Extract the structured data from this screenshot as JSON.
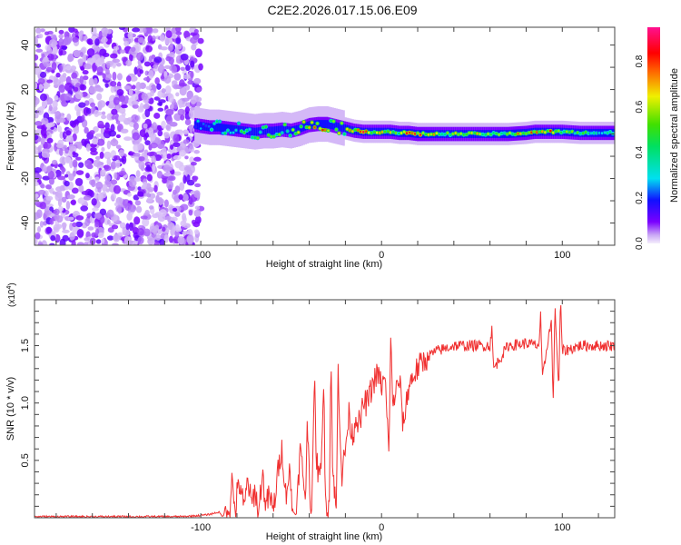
{
  "title": "C2E2.2026.017.15.06.E09",
  "chart_data": [
    {
      "type": "heatmap",
      "name": "spectrogram",
      "xlabel": "Height of straight line (km)",
      "ylabel": "Frequency (Hz)",
      "xlim": [
        -192,
        129
      ],
      "ylim": [
        -50,
        48
      ],
      "xticks": [
        -100,
        0,
        100
      ],
      "yticks": [
        -40,
        -20,
        0,
        20,
        40
      ],
      "noise_region_x": [
        -192,
        -103
      ],
      "ridge": {
        "x": [
          -103,
          -95,
          -90,
          -85,
          -80,
          -75,
          -70,
          -65,
          -60,
          -55,
          -50,
          -45,
          -40,
          -35,
          -30,
          -25,
          -20,
          -15,
          -10,
          -5,
          0,
          5,
          10,
          15,
          20,
          30,
          40,
          50,
          60,
          70,
          80,
          85,
          90,
          95,
          100,
          110,
          120,
          129
        ],
        "freq": [
          4,
          3,
          3,
          2.5,
          2,
          1.5,
          1,
          1.5,
          1.5,
          2,
          1.5,
          2.5,
          4,
          4.5,
          4.5,
          3.5,
          2.5,
          1.5,
          1,
          1,
          1,
          1,
          0.5,
          0.5,
          0,
          0,
          0,
          0,
          0,
          0,
          0.5,
          1,
          1,
          1,
          1,
          0.5,
          0.5,
          0.5
        ],
        "amplitude": [
          0.3,
          0.4,
          0.45,
          0.5,
          0.45,
          0.5,
          0.55,
          0.5,
          0.6,
          0.55,
          0.65,
          0.7,
          0.75,
          0.85,
          0.8,
          0.7,
          0.75,
          0.8,
          0.9,
          0.7,
          0.8,
          0.85,
          0.7,
          0.85,
          0.9,
          0.7,
          0.65,
          0.7,
          0.65,
          0.6,
          0.85,
          0.8,
          0.75,
          0.85,
          0.6,
          0.55,
          0.5,
          0.5
        ]
      },
      "colorbar": {
        "label": "Normalized spectral amplitude",
        "range": [
          0,
          0.95
        ],
        "ticks": [
          "0.0",
          "0.2",
          "0.4",
          "0.6",
          "0.8"
        ],
        "tick_values": [
          0,
          0.2,
          0.4,
          0.6,
          0.8
        ]
      }
    },
    {
      "type": "line",
      "name": "snr",
      "xlabel": "Height of straight line (km)",
      "ylabel": "SNR (10 * v/v)",
      "scale_label": "(x10",
      "scale_exp": "4",
      "scale_close": ")",
      "xlim": [
        -192,
        129
      ],
      "ylim": [
        0,
        1.9
      ],
      "xticks": [
        -100,
        0,
        100
      ],
      "yticks": [
        "0.5",
        "1.0",
        "1.5"
      ],
      "ytick_values": [
        0.5,
        1.0,
        1.5
      ],
      "color": "#f03030",
      "x": [
        -192,
        -150,
        -110,
        -100,
        -95,
        -90,
        -88,
        -85,
        -84,
        -83,
        -81,
        -80,
        -78,
        -76,
        -74,
        -72,
        -70,
        -68,
        -66,
        -64,
        -62,
        -60,
        -58,
        -56,
        -55,
        -53,
        -51,
        -49,
        -47,
        -45,
        -43,
        -42,
        -41,
        -39,
        -37,
        -36,
        -34,
        -32,
        -31,
        -29,
        -28,
        -27,
        -25,
        -24,
        -22,
        -20,
        -18,
        -16,
        -14,
        -12,
        -10,
        -8,
        -6,
        -4,
        -2,
        0,
        2,
        4,
        5,
        6,
        8,
        10,
        12,
        15,
        18,
        20,
        25,
        30,
        40,
        50,
        60,
        61,
        62,
        70,
        80,
        87,
        88,
        89,
        92,
        94,
        95,
        96,
        98,
        99,
        100,
        110,
        129
      ],
      "y": [
        0.01,
        0.01,
        0.01,
        0.02,
        0.03,
        0.05,
        0.01,
        0.1,
        0.02,
        0.35,
        0.05,
        0.2,
        0.3,
        0.05,
        0.35,
        0.1,
        0.25,
        0.02,
        0.4,
        0.1,
        0.2,
        0.05,
        0.3,
        0.55,
        0.6,
        0.2,
        0.4,
        0.05,
        0.03,
        0.6,
        0.3,
        0.2,
        0.85,
        0.01,
        1.15,
        0.5,
        0.3,
        1.15,
        0.15,
        0.1,
        1.4,
        0.4,
        0.05,
        1.3,
        0.35,
        0.6,
        0.9,
        0.7,
        0.9,
        0.8,
        1.0,
        1.0,
        1.1,
        1.2,
        1.25,
        1.15,
        1.2,
        0.55,
        1.6,
        1.0,
        1.1,
        1.2,
        0.8,
        1.15,
        1.25,
        1.3,
        1.4,
        1.45,
        1.5,
        1.5,
        1.5,
        1.65,
        1.3,
        1.5,
        1.52,
        1.5,
        1.75,
        1.2,
        1.55,
        1.7,
        1.0,
        1.85,
        1.1,
        1.9,
        1.45,
        1.5,
        1.5
      ]
    }
  ]
}
